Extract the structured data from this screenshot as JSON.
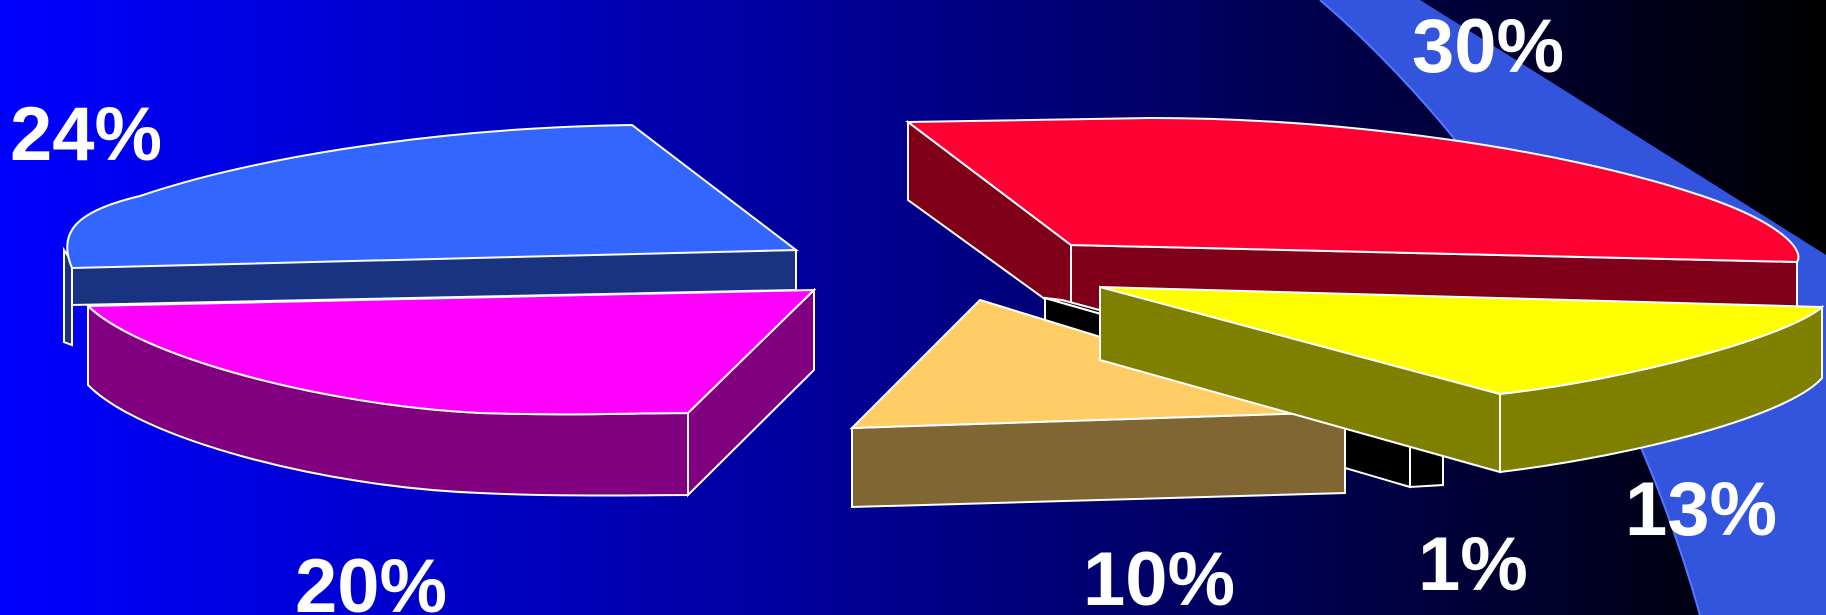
{
  "chart_data": [
    {
      "type": "pie",
      "title": "",
      "slices": [
        {
          "value": 24,
          "label": "24%",
          "color": "#3366FF",
          "side_color": "#1A3380"
        },
        {
          "value": 20,
          "label": "20%",
          "color": "#FF00FF",
          "side_color": "#800080"
        }
      ]
    },
    {
      "type": "pie",
      "title": "",
      "slices": [
        {
          "value": 30,
          "label": "30%",
          "color": "#FF0033",
          "side_color": "#80001A"
        },
        {
          "value": 13,
          "label": "13%",
          "color": "#FFFF00",
          "side_color": "#808000"
        },
        {
          "value": 1,
          "label": "1%",
          "color": "#000000",
          "side_color": "#000000"
        },
        {
          "value": 10,
          "label": "10%",
          "color": "#FFCC66",
          "side_color": "#806633"
        }
      ]
    }
  ],
  "colors": {
    "background_left": "#0000FF",
    "background_right": "#000000",
    "swoosh": "#3355DD",
    "label_text": "#FFFFFF",
    "outline": "#FFFFFF"
  }
}
